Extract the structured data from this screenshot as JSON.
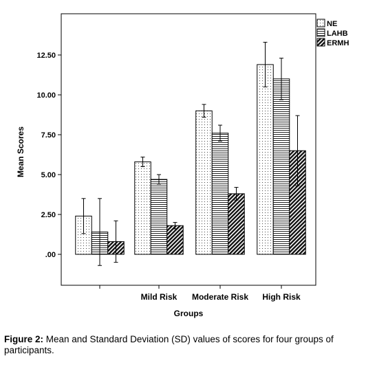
{
  "chart_data": {
    "type": "bar",
    "xlabel": "Groups",
    "ylabel": "Mean Scores",
    "categories": [
      "",
      "Mild Risk",
      "Moderate Risk",
      "High Risk"
    ],
    "ylim": [
      -2.0,
      15.1
    ],
    "yticks": [
      0,
      2.5,
      5.0,
      7.5,
      10.0,
      12.5
    ],
    "ytick_labels": [
      ".00",
      "2.50",
      "5.00",
      "7.50",
      "10.00",
      "12.50"
    ],
    "legend_position": "top-right",
    "grid": false,
    "series": [
      {
        "name": "NE",
        "pattern": "dots",
        "values": [
          2.4,
          5.8,
          9.0,
          11.9
        ],
        "sd": [
          1.1,
          0.3,
          0.4,
          1.4
        ]
      },
      {
        "name": "LAHB",
        "pattern": "horizontal",
        "values": [
          1.4,
          4.7,
          7.6,
          11.0
        ],
        "sd": [
          2.1,
          0.3,
          0.5,
          1.3
        ]
      },
      {
        "name": "ERMH",
        "pattern": "diagonal",
        "values": [
          0.8,
          1.8,
          3.8,
          6.5
        ],
        "sd": [
          1.3,
          0.2,
          0.4,
          2.2
        ]
      }
    ]
  },
  "caption": {
    "label": "Figure 2:",
    "text": " Mean and Standard Deviation (SD) values of scores for four groups of participants."
  },
  "colors": {
    "ink": "#000000",
    "background": "#ffffff"
  }
}
